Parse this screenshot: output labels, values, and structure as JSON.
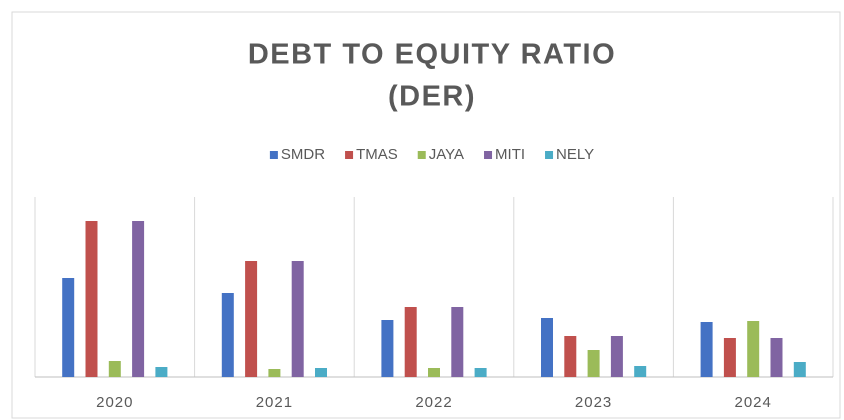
{
  "chart_data": {
    "type": "bar",
    "title": [
      "DEBT TO EQUITY RATIO",
      "(DER)"
    ],
    "categories": [
      "2020",
      "2021",
      "2022",
      "2023",
      "2024"
    ],
    "series": [
      {
        "name": "SMDR",
        "color": "#4472c4",
        "values": [
          99,
          84,
          57,
          59,
          55
        ]
      },
      {
        "name": "TMAS",
        "color": "#c0504d",
        "values": [
          156,
          116,
          70,
          41,
          39
        ]
      },
      {
        "name": "JAYA",
        "color": "#9bbb59",
        "values": [
          16,
          8,
          9,
          27,
          56
        ]
      },
      {
        "name": "MITI",
        "color": "#8064a2",
        "values": [
          156,
          116,
          70,
          41,
          39
        ]
      },
      {
        "name": "NELY",
        "color": "#4bacc6",
        "values": [
          10,
          9,
          9,
          11,
          15
        ]
      }
    ],
    "ylim": [
      0,
      180
    ],
    "legend": "top"
  }
}
